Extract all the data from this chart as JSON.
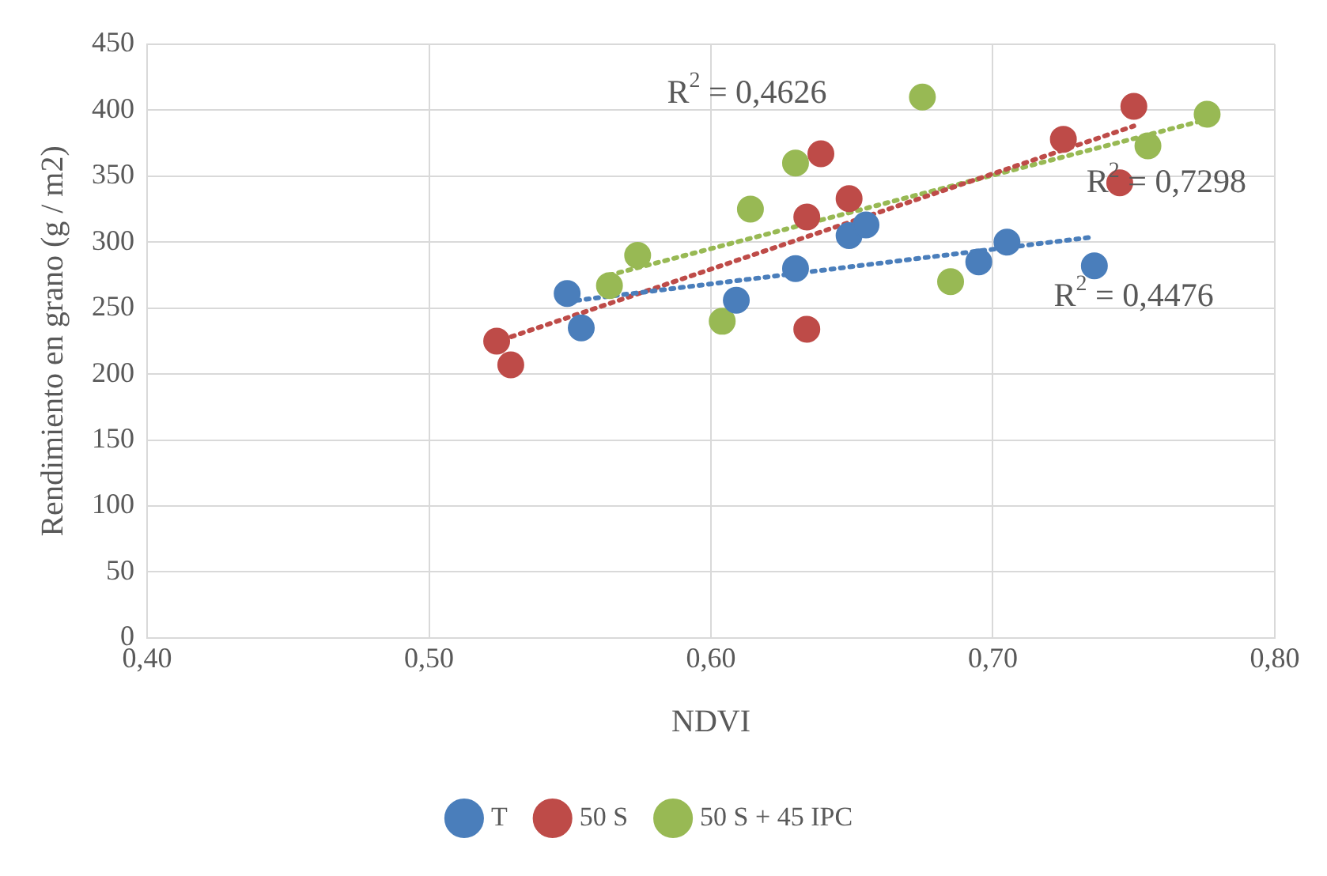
{
  "chart_data": {
    "type": "scatter",
    "xlabel": "NDVI",
    "ylabel": "Rendimiento en grano (g / m2)",
    "xlim": [
      0.4,
      0.8
    ],
    "xticks": [
      {
        "value": 0.4,
        "label": "0,40"
      },
      {
        "value": 0.5,
        "label": "0,50"
      },
      {
        "value": 0.6,
        "label": "0,60"
      },
      {
        "value": 0.7,
        "label": "0,70"
      },
      {
        "value": 0.8,
        "label": "0,80"
      }
    ],
    "ylim": [
      0,
      450
    ],
    "yticks": [
      0,
      50,
      100,
      150,
      200,
      250,
      300,
      350,
      400,
      450
    ],
    "grid": true,
    "legend": "bottom",
    "marker": "circle",
    "series": [
      {
        "name": "T",
        "color": "#4a7ebb",
        "x": [
          0.549,
          0.554,
          0.609,
          0.63,
          0.649,
          0.655,
          0.695,
          0.705,
          0.736
        ],
        "values": [
          261,
          235,
          256,
          280,
          305,
          313,
          285,
          300,
          282
        ]
      },
      {
        "name": "50 S",
        "color": "#be4b48",
        "x": [
          0.524,
          0.529,
          0.634,
          0.639,
          0.634,
          0.649,
          0.725,
          0.75,
          0.745
        ],
        "values": [
          225,
          207,
          319,
          367,
          234,
          333,
          378,
          403,
          345
        ]
      },
      {
        "name": "50 S + 45 IPC",
        "color": "#98b954",
        "x": [
          0.564,
          0.574,
          0.604,
          0.614,
          0.63,
          0.675,
          0.685,
          0.755,
          0.776
        ],
        "values": [
          267,
          290,
          240,
          325,
          360,
          410,
          270,
          373,
          397
        ]
      },
      {
        "type": "line",
        "color": "#4a7ebb",
        "line_style": "dotted",
        "marker": "none",
        "x": [
          0.549,
          0.736
        ],
        "values": [
          255,
          304
        ]
      },
      {
        "type": "line",
        "color": "#be4b48",
        "line_style": "dotted",
        "marker": "none",
        "x": [
          0.526,
          0.75
        ],
        "values": [
          226,
          388
        ]
      },
      {
        "type": "line",
        "color": "#98b954",
        "line_style": "dotted",
        "marker": "none",
        "x": [
          0.564,
          0.776
        ],
        "values": [
          275,
          393
        ]
      }
    ],
    "annotations": [
      "R$^{2}$ = 0,4626",
      "R$^{2}$ = 0,7298",
      "R$^{2}$ = 0,4476"
    ]
  }
}
